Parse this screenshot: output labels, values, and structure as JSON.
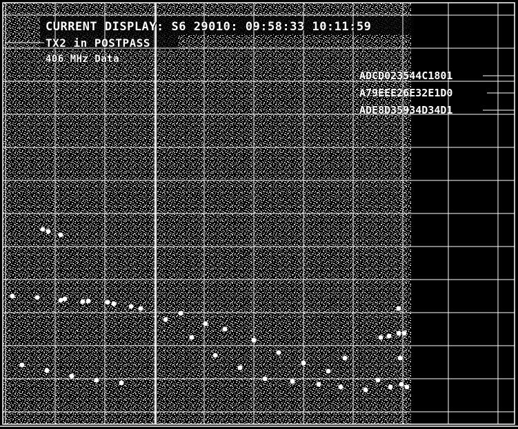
{
  "header": {
    "current_display": "CURRENT DISPLAY: S6 29010: 09:58:33 10:11:59",
    "transmitter_status": "TX2 in POSTPASS",
    "frequency_label": "406 MHz Data"
  },
  "beacons": [
    {
      "id": "ADCD023544C1801"
    },
    {
      "id": "A79EEE26E32E1D0"
    },
    {
      "id": "ADE8D35934D34D1"
    }
  ],
  "colors": {
    "background": "#000000",
    "noise": "#ffffff",
    "grid": "#ffffff",
    "detections": "#ffffff"
  }
}
